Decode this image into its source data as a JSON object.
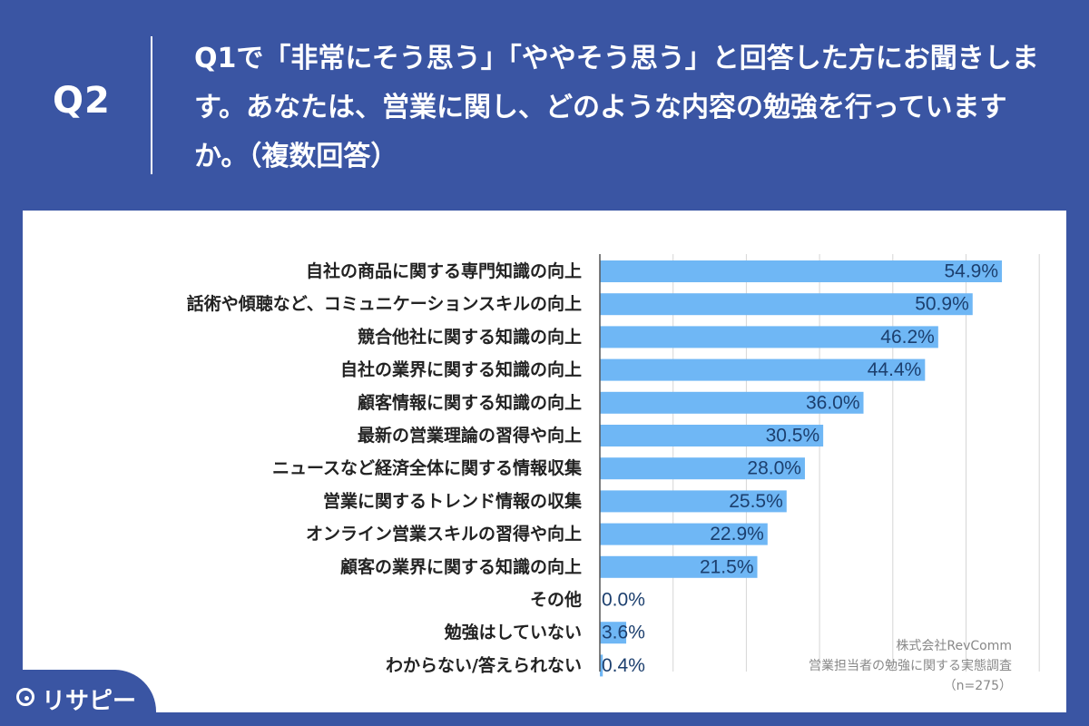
{
  "header": {
    "qnum": "Q2",
    "question": "Q1で「非常にそう思う」「ややそう思う」と回答した方にお聞きします。あなたは、営業に関し、どのような内容の勉強を行っていますか。（複数回答）"
  },
  "chart_data": {
    "type": "bar",
    "orientation": "horizontal",
    "categories": [
      "自社の商品に関する専門知識の向上",
      "話術や傾聴など、コミュニケーションスキルの向上",
      "競合他社に関する知識の向上",
      "自社の業界に関する知識の向上",
      "顧客情報に関する知識の向上",
      "最新の営業理論の習得や向上",
      "ニュースなど経済全体に関する情報収集",
      "営業に関するトレンド情報の収集",
      "オンライン営業スキルの習得や向上",
      "顧客の業界に関する知識の向上",
      "その他",
      "勉強はしていない",
      "わからない/答えられない"
    ],
    "values": [
      54.9,
      50.9,
      46.2,
      44.4,
      36.0,
      30.5,
      28.0,
      25.5,
      22.9,
      21.5,
      0.0,
      3.6,
      0.4
    ],
    "value_labels": [
      "54.9%",
      "50.9%",
      "46.2%",
      "44.4%",
      "36.0%",
      "30.5%",
      "28.0%",
      "25.5%",
      "22.9%",
      "21.5%",
      "0.0%",
      "3.6%",
      "0.4%"
    ],
    "xlim": [
      0,
      60
    ],
    "grid": true,
    "bar_color": "#6fb7f5",
    "label_color": "#1c3f6e"
  },
  "source": {
    "company": "株式会社RevComm",
    "survey": "営業担当者の勉強に関する実態調査",
    "n": "（n=275）"
  },
  "logo": {
    "text": "リサピー"
  },
  "colors": {
    "background": "#3a55a3",
    "panel": "#ffffff"
  }
}
